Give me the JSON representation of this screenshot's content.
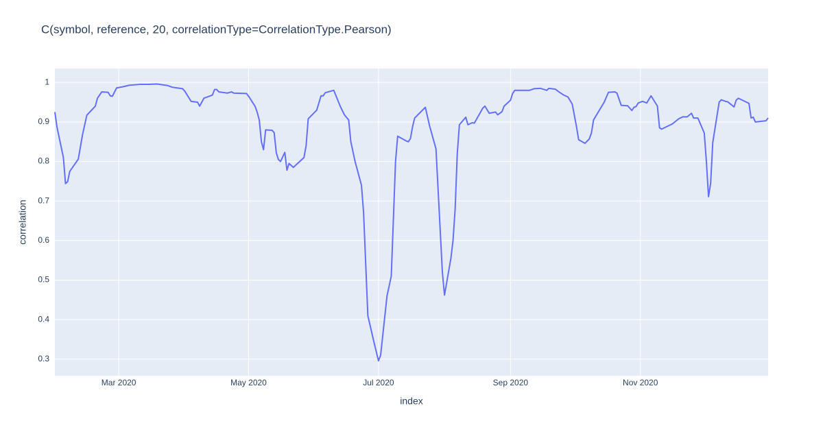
{
  "chart_data": {
    "type": "line",
    "title": "C(symbol, reference, 20, correlationType=CorrelationType.Pearson)",
    "x_label": "index",
    "y_label": "correlation",
    "color": "#636efa",
    "grid": true,
    "xlim": [
      "2020-01-31",
      "2020-12-31"
    ],
    "xticks": [
      {
        "value": "2020-03-01",
        "label": "Mar 2020"
      },
      {
        "value": "2020-05-01",
        "label": "May 2020"
      },
      {
        "value": "2020-07-01",
        "label": "Jul 2020"
      },
      {
        "value": "2020-09-01",
        "label": "Sep 2020"
      },
      {
        "value": "2020-11-01",
        "label": "Nov 2020"
      }
    ],
    "ylim": [
      0.258,
      1.035
    ],
    "yticks": [
      0.3,
      0.4,
      0.5,
      0.6,
      0.7,
      0.8,
      0.9,
      1
    ],
    "x": [
      "2020-01-31",
      "2020-02-01",
      "2020-02-04",
      "2020-02-05",
      "2020-02-06",
      "2020-02-07",
      "2020-02-11",
      "2020-02-13",
      "2020-02-15",
      "2020-02-19",
      "2020-02-20",
      "2020-02-22",
      "2020-02-25",
      "2020-02-26",
      "2020-02-27",
      "2020-02-29",
      "2020-03-03",
      "2020-03-06",
      "2020-03-11",
      "2020-03-15",
      "2020-03-19",
      "2020-03-24",
      "2020-03-26",
      "2020-03-31",
      "2020-04-01",
      "2020-04-04",
      "2020-04-07",
      "2020-04-08",
      "2020-04-10",
      "2020-04-14",
      "2020-04-15",
      "2020-04-16",
      "2020-04-17",
      "2020-04-21",
      "2020-04-23",
      "2020-04-24",
      "2020-04-30",
      "2020-05-01",
      "2020-05-04",
      "2020-05-05",
      "2020-05-06",
      "2020-05-07",
      "2020-05-08",
      "2020-05-09",
      "2020-05-12",
      "2020-05-13",
      "2020-05-14",
      "2020-05-15",
      "2020-05-16",
      "2020-05-18",
      "2020-05-19",
      "2020-05-20",
      "2020-05-22",
      "2020-05-27",
      "2020-05-28",
      "2020-05-29",
      "2020-06-02",
      "2020-06-04",
      "2020-06-05",
      "2020-06-06",
      "2020-06-10",
      "2020-06-13",
      "2020-06-15",
      "2020-06-17",
      "2020-06-18",
      "2020-06-20",
      "2020-06-23",
      "2020-06-24",
      "2020-06-26",
      "2020-06-29",
      "2020-07-01",
      "2020-07-02",
      "2020-07-05",
      "2020-07-07",
      "2020-07-09",
      "2020-07-10",
      "2020-07-14",
      "2020-07-15",
      "2020-07-16",
      "2020-07-17",
      "2020-07-18",
      "2020-07-23",
      "2020-07-25",
      "2020-07-28",
      "2020-07-31",
      "2020-08-01",
      "2020-08-04",
      "2020-08-05",
      "2020-08-06",
      "2020-08-07",
      "2020-08-08",
      "2020-08-11",
      "2020-08-12",
      "2020-08-14",
      "2020-08-15",
      "2020-08-19",
      "2020-08-20",
      "2020-08-22",
      "2020-08-25",
      "2020-08-26",
      "2020-08-28",
      "2020-08-29",
      "2020-09-01",
      "2020-09-02",
      "2020-09-03",
      "2020-09-10",
      "2020-09-12",
      "2020-09-15",
      "2020-09-18",
      "2020-09-19",
      "2020-09-22",
      "2020-09-24",
      "2020-09-26",
      "2020-09-28",
      "2020-09-30",
      "2020-10-02",
      "2020-10-03",
      "2020-10-06",
      "2020-10-08",
      "2020-10-09",
      "2020-10-10",
      "2020-10-15",
      "2020-10-17",
      "2020-10-20",
      "2020-10-21",
      "2020-10-23",
      "2020-10-26",
      "2020-10-28",
      "2020-10-29",
      "2020-10-30",
      "2020-10-31",
      "2020-11-02",
      "2020-11-04",
      "2020-11-06",
      "2020-11-09",
      "2020-11-10",
      "2020-11-11",
      "2020-11-16",
      "2020-11-19",
      "2020-11-21",
      "2020-11-23",
      "2020-11-25",
      "2020-11-26",
      "2020-11-28",
      "2020-12-01",
      "2020-12-02",
      "2020-12-03",
      "2020-12-04",
      "2020-12-05",
      "2020-12-08",
      "2020-12-09",
      "2020-12-11",
      "2020-12-12",
      "2020-12-15",
      "2020-12-16",
      "2020-12-17",
      "2020-12-22",
      "2020-12-23",
      "2020-12-24",
      "2020-12-25",
      "2020-12-30",
      "2020-12-31"
    ],
    "values": [
      0.925,
      0.887,
      0.81,
      0.744,
      0.749,
      0.775,
      0.806,
      0.868,
      0.917,
      0.94,
      0.96,
      0.976,
      0.975,
      0.966,
      0.965,
      0.986,
      0.989,
      0.993,
      0.995,
      0.995,
      0.996,
      0.992,
      0.988,
      0.984,
      0.978,
      0.952,
      0.95,
      0.94,
      0.96,
      0.968,
      0.982,
      0.982,
      0.976,
      0.973,
      0.976,
      0.973,
      0.972,
      0.965,
      0.94,
      0.925,
      0.905,
      0.85,
      0.83,
      0.88,
      0.879,
      0.873,
      0.822,
      0.805,
      0.8,
      0.823,
      0.778,
      0.795,
      0.785,
      0.81,
      0.84,
      0.908,
      0.93,
      0.966,
      0.966,
      0.974,
      0.98,
      0.94,
      0.918,
      0.905,
      0.85,
      0.8,
      0.74,
      0.67,
      0.41,
      0.34,
      0.296,
      0.31,
      0.46,
      0.51,
      0.8,
      0.864,
      0.852,
      0.85,
      0.858,
      0.888,
      0.91,
      0.937,
      0.89,
      0.832,
      0.52,
      0.462,
      0.555,
      0.6,
      0.68,
      0.82,
      0.893,
      0.912,
      0.893,
      0.898,
      0.897,
      0.935,
      0.94,
      0.922,
      0.925,
      0.918,
      0.926,
      0.94,
      0.955,
      0.972,
      0.98,
      0.98,
      0.984,
      0.985,
      0.98,
      0.985,
      0.983,
      0.975,
      0.968,
      0.963,
      0.945,
      0.888,
      0.855,
      0.846,
      0.857,
      0.872,
      0.905,
      0.95,
      0.975,
      0.976,
      0.973,
      0.942,
      0.941,
      0.929,
      0.937,
      0.939,
      0.948,
      0.952,
      0.948,
      0.966,
      0.94,
      0.885,
      0.882,
      0.895,
      0.908,
      0.913,
      0.913,
      0.922,
      0.91,
      0.91,
      0.872,
      0.8,
      0.711,
      0.745,
      0.848,
      0.95,
      0.956,
      0.952,
      0.951,
      0.938,
      0.955,
      0.96,
      0.947,
      0.91,
      0.912,
      0.9,
      0.903,
      0.91
    ]
  }
}
